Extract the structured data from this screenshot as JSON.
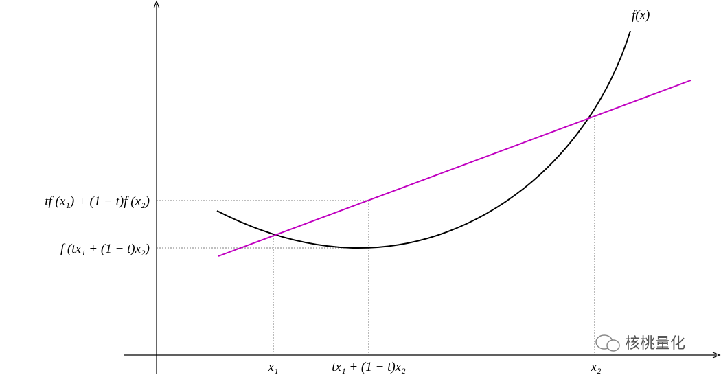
{
  "function_label": "f(x)",
  "y_labels": [
    "tf (x₁) + (1 − t)f (x₂)",
    "f (tx₁ + (1 − t)x₂)"
  ],
  "x_labels": [
    "x₁",
    "tx₁ + (1 − t)x₂",
    "x₂"
  ],
  "watermark": "核桃量化"
}
